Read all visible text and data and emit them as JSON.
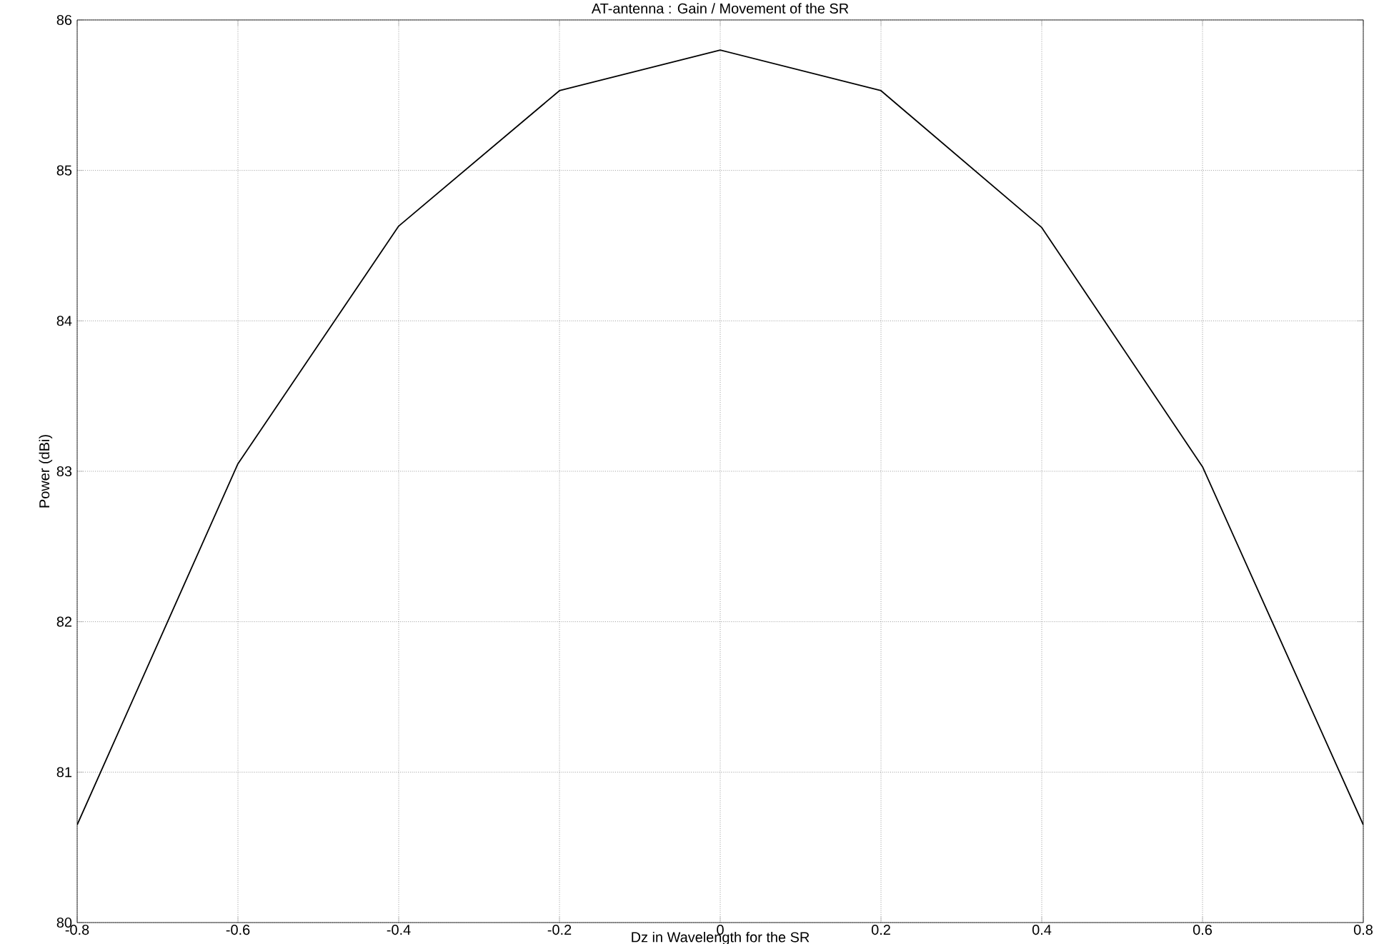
{
  "chart_data": {
    "type": "line",
    "title": "AT-antenna : Gain / Movement of the SR",
    "xlabel": "Dz in Wavelength for the SR",
    "ylabel": "Power (dBi)",
    "x": [
      -0.8,
      -0.6,
      -0.4,
      -0.2,
      0,
      0.2,
      0.4,
      0.6,
      0.8
    ],
    "series": [
      {
        "color": "#000000",
        "values": [
          80.65,
          83.05,
          84.63,
          85.53,
          85.8,
          85.53,
          84.62,
          83.03,
          80.65
        ]
      }
    ],
    "xlim": [
      -0.8,
      0.8
    ],
    "ylim": [
      80,
      86
    ],
    "xticks": [
      -0.8,
      -0.6,
      -0.4,
      -0.2,
      0,
      0.2,
      0.4,
      0.6,
      0.8
    ],
    "yticks": [
      80,
      81,
      82,
      83,
      84,
      85,
      86
    ],
    "grid": true,
    "marker": "none",
    "line_style": "solid"
  }
}
